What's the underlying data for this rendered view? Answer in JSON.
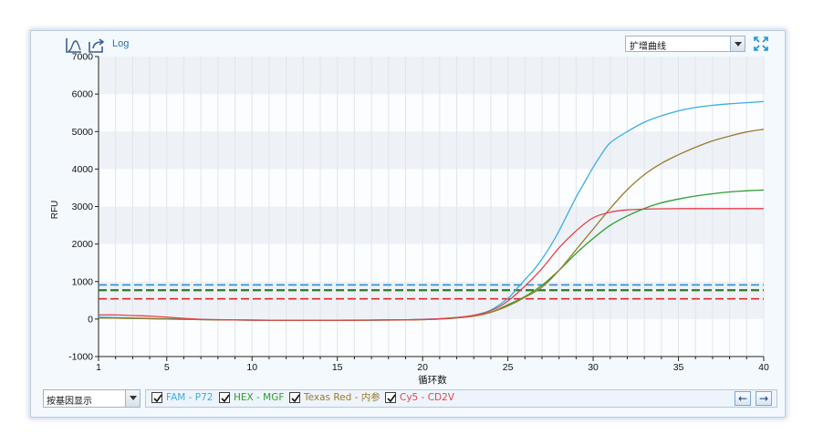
{
  "toolbar": {
    "log_label": "Log",
    "icons": [
      "linear-scale-icon",
      "export-icon",
      "expand-icon"
    ]
  },
  "curve_select": {
    "value": "扩增曲线"
  },
  "chart_data": {
    "type": "line",
    "xlabel": "循环数",
    "ylabel": "RFU",
    "xlim": [
      1,
      40
    ],
    "ylim": [
      -1000,
      7000
    ],
    "xticks": [
      1,
      5,
      10,
      15,
      20,
      25,
      30,
      35,
      40
    ],
    "yticks": [
      -1000,
      0,
      1000,
      2000,
      3000,
      4000,
      5000,
      6000,
      7000
    ],
    "grid": true,
    "series": [
      {
        "name": "FAM - P72",
        "color": "#3aaee6",
        "x": [
          1,
          3,
          5,
          7,
          9,
          11,
          13,
          15,
          17,
          19,
          20,
          21,
          22,
          23,
          24,
          25,
          25.5,
          26,
          26.5,
          27,
          27.5,
          28,
          28.5,
          29,
          29.5,
          30,
          30.5,
          31,
          32,
          33,
          34,
          35,
          36,
          37,
          38,
          39,
          40
        ],
        "y": [
          50,
          30,
          10,
          -10,
          -25,
          -35,
          -35,
          -35,
          -30,
          -20,
          -5,
          10,
          40,
          100,
          240,
          550,
          800,
          1050,
          1300,
          1600,
          1950,
          2350,
          2800,
          3250,
          3650,
          4050,
          4400,
          4700,
          5000,
          5250,
          5420,
          5550,
          5640,
          5700,
          5740,
          5770,
          5800
        ]
      },
      {
        "name": "HEX - MGF",
        "color": "#2ca02c",
        "x": [
          1,
          3,
          5,
          7,
          9,
          11,
          13,
          15,
          17,
          19,
          20,
          21,
          22,
          23,
          24,
          25,
          26,
          27,
          28,
          29,
          30,
          31,
          32,
          33,
          34,
          35,
          36,
          37,
          38,
          39,
          40
        ],
        "y": [
          30,
          20,
          0,
          -15,
          -25,
          -30,
          -35,
          -35,
          -30,
          -25,
          -15,
          0,
          30,
          80,
          180,
          380,
          600,
          900,
          1300,
          1750,
          2150,
          2500,
          2750,
          2950,
          3100,
          3200,
          3280,
          3340,
          3390,
          3420,
          3440
        ]
      },
      {
        "name": "Texas Red - 内参",
        "color": "#9a7b2d",
        "x": [
          1,
          3,
          5,
          7,
          9,
          11,
          13,
          15,
          17,
          19,
          20,
          21,
          22,
          23,
          24,
          25,
          26,
          27,
          28,
          29,
          30,
          31,
          32,
          33,
          34,
          35,
          36,
          37,
          38,
          39,
          40
        ],
        "y": [
          30,
          20,
          0,
          -15,
          -25,
          -30,
          -35,
          -35,
          -30,
          -25,
          -15,
          0,
          30,
          80,
          180,
          350,
          580,
          850,
          1300,
          1850,
          2400,
          2950,
          3450,
          3850,
          4150,
          4380,
          4580,
          4750,
          4880,
          4990,
          5060
        ]
      },
      {
        "name": "Cy5 - CD2V",
        "color": "#e8414b",
        "x": [
          1,
          2,
          3,
          4,
          5,
          6,
          7,
          8,
          9,
          11,
          13,
          15,
          17,
          19,
          20,
          21,
          22,
          23,
          24,
          25,
          26,
          27,
          28,
          29,
          30,
          31,
          32,
          33,
          34,
          36,
          38,
          40
        ],
        "y": [
          110,
          110,
          95,
          80,
          50,
          20,
          -5,
          -15,
          -25,
          -30,
          -30,
          -30,
          -25,
          -20,
          -10,
          10,
          40,
          100,
          220,
          480,
          880,
          1350,
          1900,
          2350,
          2700,
          2850,
          2910,
          2930,
          2940,
          2945,
          2945,
          2945
        ]
      }
    ],
    "thresholds": [
      {
        "value": 910,
        "color": "#2b8fd8"
      },
      {
        "value": 780,
        "color": "#8a6a1e"
      },
      {
        "value": 760,
        "color": "#2a7d2a"
      },
      {
        "value": 540,
        "color": "#d92a35"
      }
    ]
  },
  "gene_select": {
    "value": "按基因显示"
  },
  "filters": [
    {
      "label": "FAM - P72",
      "color": "#3aaee6",
      "checked": true
    },
    {
      "label": "HEX - MGF",
      "color": "#2ca02c",
      "checked": true
    },
    {
      "label": "Texas Red - 内参",
      "color": "#9a7b2d",
      "checked": true
    },
    {
      "label": "Cy5 - CD2V",
      "color": "#e8414b",
      "checked": true
    }
  ],
  "nav": {
    "prev": "←",
    "next": "→"
  }
}
